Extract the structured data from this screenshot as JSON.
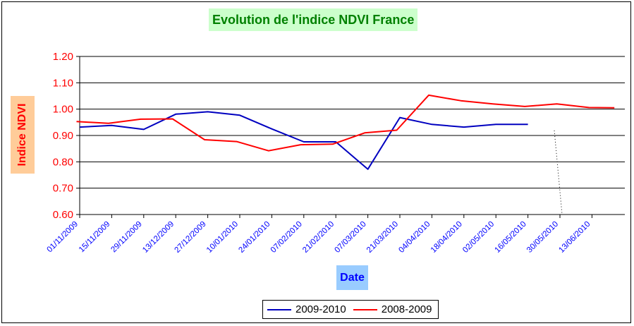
{
  "chart_data": {
    "type": "line",
    "title": "Evolution de l'indice NDVI France",
    "xlabel": "Date",
    "ylabel": "Indice NDVI",
    "ylim": [
      0.6,
      1.2
    ],
    "yticks": [
      "0.60",
      "0.70",
      "0.80",
      "0.90",
      "1.00",
      "1.10",
      "1.20"
    ],
    "categories": [
      "01/11/2009",
      "15/11/2009",
      "29/11/2009",
      "13/12/2009",
      "27/12/2009",
      "10/01/2010",
      "24/01/2010",
      "07/02/2010",
      "21/02/2010",
      "07/03/2010",
      "21/03/2010",
      "04/04/2010",
      "18/04/2010",
      "02/05/2010",
      "16/05/2010",
      "30/05/2010",
      "13/06/2010"
    ],
    "grid": true,
    "legend_position": "bottom",
    "series": [
      {
        "name": "2009-2010",
        "color": "#0000c0",
        "x": [
          0,
          1,
          2,
          3,
          4,
          5,
          6,
          7,
          8,
          9,
          10,
          11,
          12,
          13,
          14
        ],
        "values": [
          0.932,
          0.938,
          0.923,
          0.981,
          0.99,
          0.977,
          0.925,
          0.876,
          0.876,
          0.772,
          0.968,
          0.942,
          0.932,
          0.942,
          0.942
        ]
      },
      {
        "name": "2008-2009",
        "color": "#ff0000",
        "x": [
          -0.1,
          0.9,
          1.9,
          2.9,
          3.9,
          4.9,
          5.9,
          6.9,
          7.9,
          8.9,
          9.9,
          10.9,
          11.9,
          12.9,
          13.9,
          14.9,
          15.9,
          16.7
        ],
        "values": [
          0.953,
          0.946,
          0.962,
          0.963,
          0.884,
          0.877,
          0.842,
          0.865,
          0.867,
          0.91,
          0.92,
          1.053,
          1.032,
          1.02,
          1.01,
          1.02,
          1.006,
          1.005
        ]
      }
    ]
  }
}
